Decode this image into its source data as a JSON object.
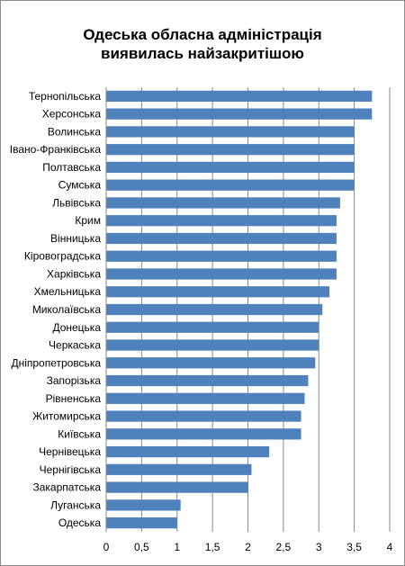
{
  "chart_data": {
    "type": "bar",
    "orientation": "horizontal",
    "title": "Одеська обласна адміністрація виявилась найзакритішою",
    "title_lines": [
      "Одеська обласна адміністрація",
      "виявилась найзакритішою"
    ],
    "categories": [
      "Тернопільська",
      "Херсонська",
      "Волинська",
      "Івано-Франківська",
      "Полтавська",
      "Сумська",
      "Львівська",
      "Крим",
      "Вінницька",
      "Кіровоградська",
      "Харківська",
      "Хмельницька",
      "Миколаївська",
      "Донецька",
      "Черкаська",
      "Дніпропетровська",
      "Запорізька",
      "Рівненська",
      "Житомирська",
      "Київська",
      "Чернівецька",
      "Чернігівська",
      "Закарпатська",
      "Луганська",
      "Одеська"
    ],
    "values": [
      3.75,
      3.75,
      3.5,
      3.5,
      3.5,
      3.5,
      3.3,
      3.25,
      3.25,
      3.25,
      3.25,
      3.15,
      3.05,
      3.0,
      3.0,
      2.95,
      2.85,
      2.8,
      2.75,
      2.75,
      2.3,
      2.05,
      2.0,
      1.05,
      1.0
    ],
    "xticks": [
      "0",
      "0,5",
      "1",
      "1,5",
      "2",
      "2,5",
      "3",
      "3,5",
      "4"
    ],
    "xlim": [
      0,
      4
    ],
    "xlabel": "",
    "ylabel": "",
    "grid": "vertical",
    "bar_color": "#4f81bd",
    "grid_color": "#878787"
  }
}
